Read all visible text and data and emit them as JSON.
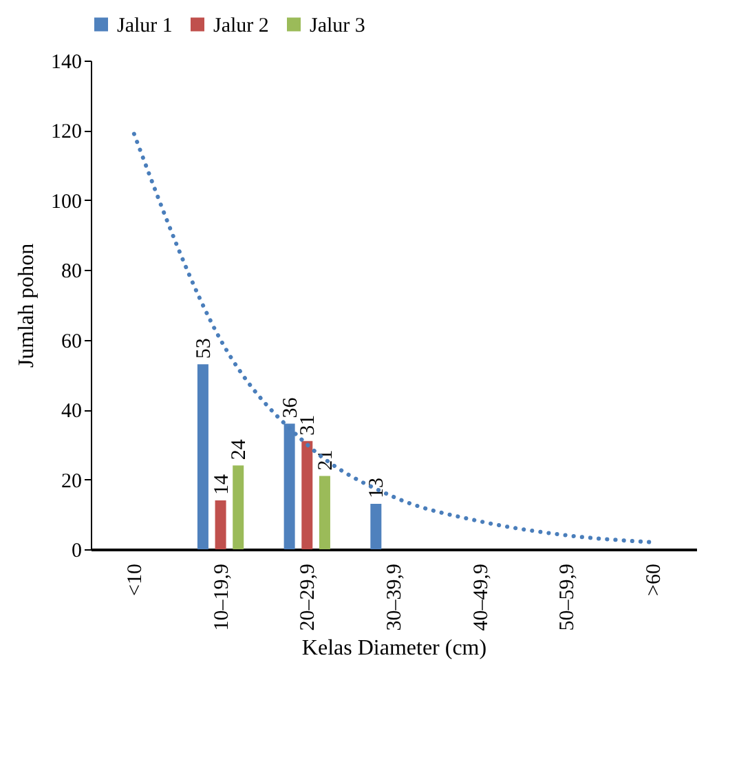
{
  "chart_data": {
    "type": "bar",
    "xlabel": "Kelas Diameter (cm)",
    "ylabel": "Jumlah pohon",
    "categories": [
      "<10",
      "10–19,9",
      "20–29,9",
      "30–39,9",
      "40–49,9",
      "50–59,9",
      ">60"
    ],
    "series": [
      {
        "name": "Jalur 1",
        "color": "#4f81bd",
        "values": [
          null,
          53,
          36,
          13,
          null,
          null,
          null
        ],
        "value_labels": [
          null,
          "53",
          "36",
          "13",
          null,
          null,
          null
        ]
      },
      {
        "name": "Jalur 2",
        "color": "#c0504d",
        "values": [
          null,
          14,
          31,
          null,
          null,
          null,
          null
        ],
        "value_labels": [
          null,
          "14",
          "31",
          null,
          null,
          null,
          null
        ]
      },
      {
        "name": "Jalur 3",
        "color": "#9bbb59",
        "values": [
          null,
          24,
          21,
          null,
          null,
          null,
          null
        ],
        "value_labels": [
          null,
          "24",
          "21",
          null,
          null,
          null,
          null
        ]
      },
      {
        "type": "line",
        "color": "#4a7ebb",
        "line_style": "dotted",
        "values": [
          119,
          60,
          30,
          15,
          8,
          4,
          2
        ]
      }
    ],
    "ylim": [
      0,
      140
    ],
    "yticks": [
      0,
      20,
      40,
      60,
      80,
      100,
      120,
      140
    ],
    "legend": "top",
    "grid": false
  }
}
